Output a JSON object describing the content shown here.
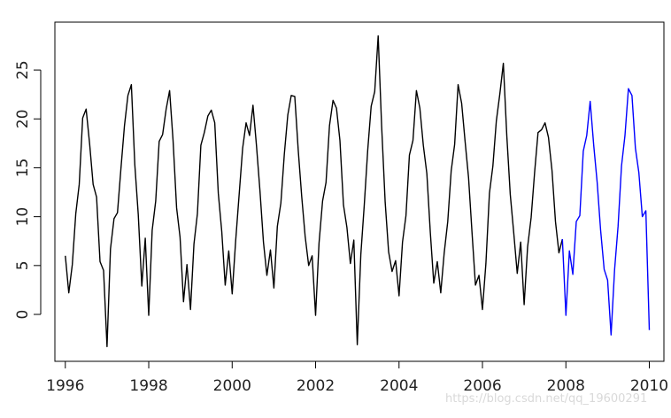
{
  "watermark": "https://blog.csdn.net/qq_19600291",
  "chart_data": {
    "type": "line",
    "title": "",
    "xlabel": "",
    "ylabel": "",
    "xlim": [
      1995.75,
      2010.35
    ],
    "ylim": [
      -4.8,
      29.9
    ],
    "x_ticks": [
      1996,
      1998,
      2000,
      2002,
      2004,
      2006,
      2008,
      2010
    ],
    "y_ticks": [
      0,
      5,
      10,
      15,
      20,
      25
    ],
    "grid": false,
    "series": [
      {
        "color": "#000000",
        "x": [
          1996.0,
          1996.083,
          1996.167,
          1996.25,
          1996.333,
          1996.417,
          1996.5,
          1996.583,
          1996.667,
          1996.75,
          1996.833,
          1996.917,
          1997.0,
          1997.083,
          1997.167,
          1997.25,
          1997.333,
          1997.417,
          1997.5,
          1997.583,
          1997.667,
          1997.75,
          1997.833,
          1997.917,
          1998.0,
          1998.083,
          1998.167,
          1998.25,
          1998.333,
          1998.417,
          1998.5,
          1998.583,
          1998.667,
          1998.75,
          1998.833,
          1998.917,
          1999.0,
          1999.083,
          1999.167,
          1999.25,
          1999.333,
          1999.417,
          1999.5,
          1999.583,
          1999.667,
          1999.75,
          1999.833,
          1999.917,
          2000.0,
          2000.083,
          2000.167,
          2000.25,
          2000.333,
          2000.417,
          2000.5,
          2000.583,
          2000.667,
          2000.75,
          2000.833,
          2000.917,
          2001.0,
          2001.083,
          2001.167,
          2001.25,
          2001.333,
          2001.417,
          2001.5,
          2001.583,
          2001.667,
          2001.75,
          2001.833,
          2001.917,
          2002.0,
          2002.083,
          2002.167,
          2002.25,
          2002.333,
          2002.417,
          2002.5,
          2002.583,
          2002.667,
          2002.75,
          2002.833,
          2002.917,
          2003.0,
          2003.083,
          2003.167,
          2003.25,
          2003.333,
          2003.417,
          2003.5,
          2003.583,
          2003.667,
          2003.75,
          2003.833,
          2003.917,
          2004.0,
          2004.083,
          2004.167,
          2004.25,
          2004.333,
          2004.417,
          2004.5,
          2004.583,
          2004.667,
          2004.75,
          2004.833,
          2004.917,
          2005.0,
          2005.083,
          2005.167,
          2005.25,
          2005.333,
          2005.417,
          2005.5,
          2005.583,
          2005.667,
          2005.75,
          2005.833,
          2005.917,
          2006.0,
          2006.083,
          2006.167,
          2006.25,
          2006.333,
          2006.417,
          2006.5,
          2006.583,
          2006.667,
          2006.75,
          2006.833,
          2006.917,
          2007.0,
          2007.083,
          2007.167,
          2007.25,
          2007.333,
          2007.417,
          2007.5,
          2007.583,
          2007.667,
          2007.75,
          2007.833,
          2007.917
        ],
        "values": [
          6.0,
          2.2,
          5.1,
          10.3,
          13.3,
          20.1,
          21.0,
          17.4,
          13.3,
          12.0,
          5.4,
          4.5,
          -3.3,
          6.7,
          9.8,
          10.4,
          14.9,
          19.3,
          22.4,
          23.5,
          15.3,
          10.2,
          2.9,
          7.8,
          -0.1,
          8.6,
          11.6,
          17.7,
          18.4,
          21.0,
          22.9,
          17.8,
          10.9,
          7.9,
          1.3,
          5.1,
          0.5,
          7.2,
          10.3,
          17.3,
          18.6,
          20.3,
          20.9,
          19.6,
          12.4,
          8.5,
          3.0,
          6.5,
          2.1,
          7.5,
          12.2,
          17.0,
          19.6,
          18.3,
          21.4,
          17.3,
          12.6,
          7.4,
          4.0,
          6.6,
          2.7,
          9.0,
          11.4,
          16.4,
          20.4,
          22.4,
          22.3,
          16.8,
          12.1,
          8.0,
          5.0,
          6.0,
          -0.1,
          7.3,
          11.6,
          13.5,
          19.3,
          21.9,
          21.1,
          17.8,
          11.2,
          8.9,
          5.2,
          7.6,
          -3.1,
          6.1,
          11.2,
          16.8,
          21.3,
          22.8,
          28.5,
          19.3,
          11.5,
          6.4,
          4.4,
          5.5,
          1.9,
          7.4,
          10.1,
          16.3,
          17.8,
          22.9,
          21.1,
          17.3,
          14.4,
          8.4,
          3.2,
          5.4,
          2.2,
          6.3,
          9.5,
          14.7,
          17.4,
          23.5,
          21.6,
          17.7,
          14.0,
          8.4,
          3.0,
          4.0,
          0.5,
          5.2,
          12.4,
          15.2,
          19.8,
          22.6,
          25.7,
          18.3,
          12.3,
          8.3,
          4.2,
          7.4,
          1.0,
          6.9,
          9.9,
          14.5,
          18.6,
          18.9,
          19.6,
          18.1,
          14.7,
          9.5,
          6.3,
          7.7
        ]
      },
      {
        "color": "#0000ff",
        "x": [
          2007.917,
          2008.0,
          2008.083,
          2008.167,
          2008.25,
          2008.333,
          2008.417,
          2008.5,
          2008.583,
          2008.667,
          2008.75,
          2008.833,
          2008.917,
          2009.0,
          2009.083,
          2009.167,
          2009.25,
          2009.333,
          2009.417,
          2009.5,
          2009.583,
          2009.667,
          2009.75,
          2009.833,
          2009.917,
          2010.0
        ],
        "values": [
          7.7,
          -0.1,
          6.5,
          4.1,
          9.5,
          10.1,
          16.7,
          18.3,
          21.8,
          17.3,
          13.5,
          8.6,
          4.6,
          3.5,
          -2.1,
          4.6,
          9.0,
          15.2,
          18.3,
          23.1,
          22.4,
          17.0,
          14.5,
          10.0,
          10.6,
          -1.6
        ]
      }
    ]
  }
}
